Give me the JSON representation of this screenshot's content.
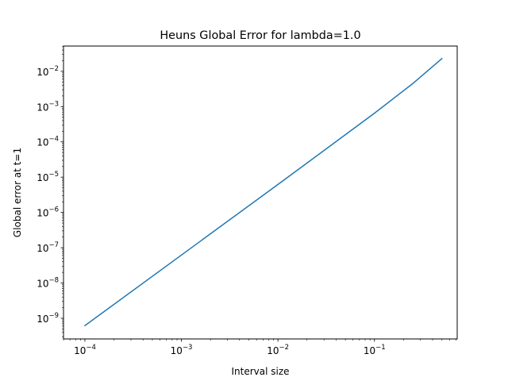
{
  "chart_data": {
    "type": "line",
    "title": "Heuns Global Error for lambda=1.0",
    "xlabel": "Interval size",
    "ylabel": "Global error at t=1",
    "xscale": "log",
    "yscale": "log",
    "xlim": [
      6e-05,
      0.72
    ],
    "ylim": [
      2.6e-10,
      0.052
    ],
    "grid": false,
    "x_ticks": [
      {
        "base": "10",
        "exp": "−4",
        "value": 0.0001
      },
      {
        "base": "10",
        "exp": "−3",
        "value": 0.001
      },
      {
        "base": "10",
        "exp": "−2",
        "value": 0.01
      },
      {
        "base": "10",
        "exp": "−1",
        "value": 0.1
      }
    ],
    "y_ticks": [
      {
        "base": "10",
        "exp": "−9",
        "value": 1e-09
      },
      {
        "base": "10",
        "exp": "−8",
        "value": 1e-08
      },
      {
        "base": "10",
        "exp": "−7",
        "value": 1e-07
      },
      {
        "base": "10",
        "exp": "−6",
        "value": 1e-06
      },
      {
        "base": "10",
        "exp": "−5",
        "value": 1e-05
      },
      {
        "base": "10",
        "exp": "−4",
        "value": 0.0001
      },
      {
        "base": "10",
        "exp": "−3",
        "value": 0.001
      },
      {
        "base": "10",
        "exp": "−2",
        "value": 0.01
      }
    ],
    "series": [
      {
        "color": "#1f77b4",
        "x": [
          0.0001,
          0.001,
          0.01,
          0.1,
          0.25,
          0.5
        ],
        "y": [
          6.2e-10,
          6.2e-08,
          6.2e-06,
          0.00065,
          0.0045,
          0.023
        ]
      }
    ]
  }
}
